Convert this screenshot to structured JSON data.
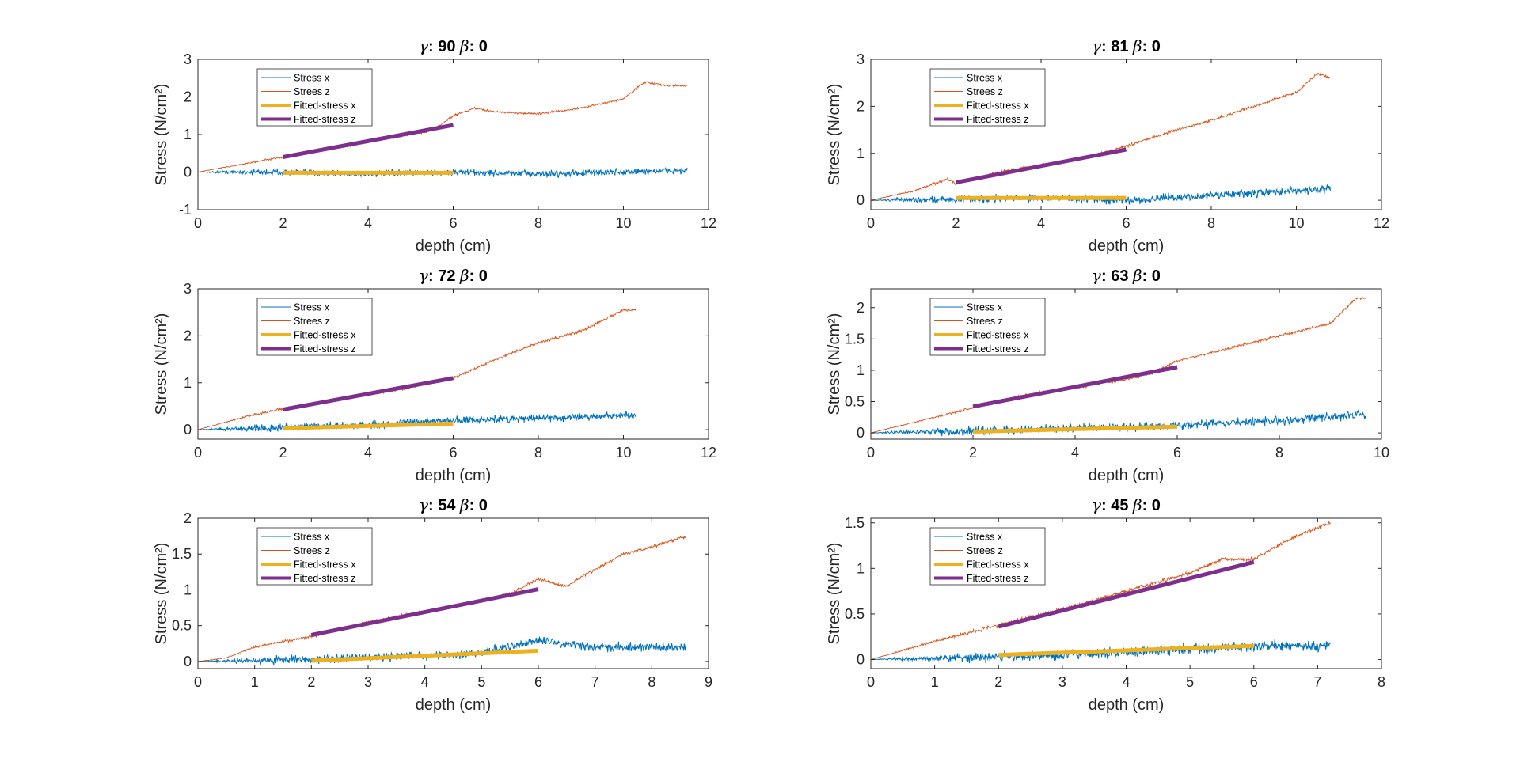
{
  "colors": {
    "stress_x": "#0072BD",
    "stress_z": "#D95319",
    "fitted_x": "#EDB120",
    "fitted_z": "#7E2F8E",
    "axes": "#262626"
  },
  "chart_data": [
    {
      "type": "line",
      "title": {
        "gamma_symbol": "γ",
        "gamma": ": 90 ",
        "beta_symbol": "β",
        "beta": ": 0"
      },
      "xlabel": "depth (cm)",
      "ylabel": "Stress (N/cm²)",
      "xlim": [
        0,
        12
      ],
      "ylim": [
        -1,
        3
      ],
      "xticks": [
        0,
        2,
        4,
        6,
        8,
        10,
        12
      ],
      "yticks": [
        -1,
        0,
        1,
        2,
        3
      ],
      "legend": {
        "position": "top-left",
        "entries": [
          "Stress x",
          "Strees z",
          "Fitted-stress x",
          "Fitted-stress z"
        ]
      },
      "series": [
        {
          "name": "Stress x",
          "kind": "noisy",
          "x": [
            0,
            2,
            4,
            6,
            8,
            10,
            11.5
          ],
          "values": [
            0,
            0.0,
            -0.05,
            0.0,
            -0.05,
            0.0,
            0.05
          ],
          "noise": 0.13
        },
        {
          "name": "Strees z",
          "kind": "noisy",
          "x": [
            0,
            1,
            2,
            3,
            4,
            5,
            5.5,
            6,
            6.5,
            7,
            8,
            9,
            10,
            10.5,
            11,
            11.5
          ],
          "values": [
            0,
            0.2,
            0.4,
            0.6,
            0.8,
            1.0,
            1.1,
            1.5,
            1.7,
            1.6,
            1.55,
            1.7,
            1.95,
            2.4,
            2.3,
            2.3
          ],
          "noise": 0.04
        },
        {
          "name": "Fitted-stress x",
          "kind": "fit",
          "x": [
            2,
            6
          ],
          "values": [
            -0.02,
            -0.02
          ]
        },
        {
          "name": "Fitted-stress z",
          "kind": "fit",
          "x": [
            2,
            6
          ],
          "values": [
            0.4,
            1.25
          ]
        }
      ]
    },
    {
      "type": "line",
      "title": {
        "gamma_symbol": "γ",
        "gamma": ": 81 ",
        "beta_symbol": "β",
        "beta": ": 0"
      },
      "xlabel": "depth (cm)",
      "ylabel": "Stress (N/cm²)",
      "xlim": [
        0,
        12
      ],
      "ylim": [
        -0.2,
        3
      ],
      "xticks": [
        0,
        2,
        4,
        6,
        8,
        10,
        12
      ],
      "yticks": [
        0,
        1,
        2,
        3
      ],
      "legend": {
        "position": "top-left",
        "entries": [
          "Stress x",
          "Strees z",
          "Fitted-stress x",
          "Fitted-stress z"
        ]
      },
      "series": [
        {
          "name": "Stress x",
          "kind": "noisy",
          "x": [
            0,
            2,
            4,
            6,
            8,
            10,
            10.8
          ],
          "values": [
            0,
            0.02,
            0.05,
            0.0,
            0.1,
            0.2,
            0.25
          ],
          "noise": 0.12
        },
        {
          "name": "Strees z",
          "kind": "noisy",
          "x": [
            0,
            1,
            1.8,
            2,
            3,
            4,
            5,
            6,
            7,
            8,
            9,
            10,
            10.5,
            10.8
          ],
          "values": [
            0,
            0.2,
            0.45,
            0.35,
            0.6,
            0.75,
            0.9,
            1.15,
            1.45,
            1.7,
            2.0,
            2.3,
            2.7,
            2.6
          ],
          "noise": 0.04
        },
        {
          "name": "Fitted-stress x",
          "kind": "fit",
          "x": [
            2,
            6
          ],
          "values": [
            0.05,
            0.05
          ]
        },
        {
          "name": "Fitted-stress z",
          "kind": "fit",
          "x": [
            2,
            6
          ],
          "values": [
            0.38,
            1.08
          ]
        }
      ]
    },
    {
      "type": "line",
      "title": {
        "gamma_symbol": "γ",
        "gamma": ": 72 ",
        "beta_symbol": "β",
        "beta": ": 0"
      },
      "xlabel": "depth (cm)",
      "ylabel": "Stress (N/cm²)",
      "xlim": [
        0,
        12
      ],
      "ylim": [
        -0.2,
        3
      ],
      "xticks": [
        0,
        2,
        4,
        6,
        8,
        10,
        12
      ],
      "yticks": [
        0,
        1,
        2,
        3
      ],
      "legend": {
        "position": "top-left",
        "entries": [
          "Stress x",
          "Strees z",
          "Fitted-stress x",
          "Fitted-stress z"
        ]
      },
      "series": [
        {
          "name": "Stress x",
          "kind": "noisy",
          "x": [
            0,
            2,
            4,
            6,
            8,
            10,
            10.3
          ],
          "values": [
            0,
            0.05,
            0.1,
            0.2,
            0.25,
            0.3,
            0.3
          ],
          "noise": 0.12
        },
        {
          "name": "Strees z",
          "kind": "noisy",
          "x": [
            0,
            1,
            2,
            3,
            4,
            5,
            6,
            6.5,
            7,
            8,
            9,
            10,
            10.3
          ],
          "values": [
            0,
            0.25,
            0.45,
            0.6,
            0.75,
            0.9,
            1.1,
            1.3,
            1.5,
            1.85,
            2.1,
            2.55,
            2.55
          ],
          "noise": 0.04
        },
        {
          "name": "Fitted-stress x",
          "kind": "fit",
          "x": [
            2,
            6
          ],
          "values": [
            0.03,
            0.13
          ]
        },
        {
          "name": "Fitted-stress z",
          "kind": "fit",
          "x": [
            2,
            6
          ],
          "values": [
            0.43,
            1.1
          ]
        }
      ]
    },
    {
      "type": "line",
      "title": {
        "gamma_symbol": "γ",
        "gamma": ": 63 ",
        "beta_symbol": "β",
        "beta": ": 0"
      },
      "xlabel": "depth (cm)",
      "ylabel": "Stress (N/cm²)",
      "xlim": [
        0,
        10
      ],
      "ylim": [
        -0.1,
        2.3
      ],
      "xticks": [
        0,
        2,
        4,
        6,
        8,
        10
      ],
      "yticks": [
        0,
        0.5,
        1,
        1.5,
        2
      ],
      "legend": {
        "position": "top-left",
        "entries": [
          "Stress x",
          "Strees z",
          "Fitted-stress x",
          "Fitted-stress z"
        ]
      },
      "series": [
        {
          "name": "Stress x",
          "kind": "noisy",
          "x": [
            0,
            2,
            4,
            6,
            8,
            9.7
          ],
          "values": [
            0,
            0.03,
            0.07,
            0.12,
            0.2,
            0.3
          ],
          "noise": 0.1
        },
        {
          "name": "Strees z",
          "kind": "noisy",
          "x": [
            0,
            1,
            2,
            3,
            4,
            5,
            5.5,
            6,
            7,
            8,
            9,
            9.5,
            9.7
          ],
          "values": [
            0,
            0.2,
            0.4,
            0.6,
            0.72,
            0.85,
            0.95,
            1.15,
            1.35,
            1.55,
            1.75,
            2.15,
            2.15
          ],
          "noise": 0.03
        },
        {
          "name": "Fitted-stress x",
          "kind": "fit",
          "x": [
            2,
            6
          ],
          "values": [
            0.02,
            0.1
          ]
        },
        {
          "name": "Fitted-stress z",
          "kind": "fit",
          "x": [
            2,
            6
          ],
          "values": [
            0.42,
            1.05
          ]
        }
      ]
    },
    {
      "type": "line",
      "title": {
        "gamma_symbol": "γ",
        "gamma": ": 54 ",
        "beta_symbol": "β",
        "beta": ": 0"
      },
      "xlabel": "depth (cm)",
      "ylabel": "Stress (N/cm²)",
      "xlim": [
        0,
        9
      ],
      "ylim": [
        -0.1,
        2
      ],
      "xticks": [
        0,
        1,
        2,
        3,
        4,
        5,
        6,
        7,
        8,
        9
      ],
      "yticks": [
        0,
        0.5,
        1,
        1.5,
        2
      ],
      "legend": {
        "position": "top-left",
        "entries": [
          "Stress x",
          "Strees z",
          "Fitted-stress x",
          "Fitted-stress z"
        ]
      },
      "series": [
        {
          "name": "Stress x",
          "kind": "noisy",
          "x": [
            0,
            2,
            4,
            5,
            6,
            7,
            8,
            8.6
          ],
          "values": [
            0,
            0.03,
            0.08,
            0.12,
            0.3,
            0.2,
            0.2,
            0.2
          ],
          "noise": 0.09
        },
        {
          "name": "Strees z",
          "kind": "noisy",
          "x": [
            0,
            0.5,
            1,
            2,
            3,
            4,
            5,
            5.5,
            6,
            6.5,
            6.8,
            7.5,
            8,
            8.6
          ],
          "values": [
            0,
            0.05,
            0.2,
            0.35,
            0.55,
            0.7,
            0.85,
            0.95,
            1.15,
            1.05,
            1.2,
            1.5,
            1.6,
            1.75
          ],
          "noise": 0.03
        },
        {
          "name": "Fitted-stress x",
          "kind": "fit",
          "x": [
            2,
            6
          ],
          "values": [
            0.01,
            0.15
          ]
        },
        {
          "name": "Fitted-stress z",
          "kind": "fit",
          "x": [
            2,
            6
          ],
          "values": [
            0.37,
            1.01
          ]
        }
      ]
    },
    {
      "type": "line",
      "title": {
        "gamma_symbol": "γ",
        "gamma": ": 45 ",
        "beta_symbol": "β",
        "beta": ": 0"
      },
      "xlabel": "depth (cm)",
      "ylabel": "Stress (N/cm²)",
      "xlim": [
        0,
        8
      ],
      "ylim": [
        -0.1,
        1.55
      ],
      "xticks": [
        0,
        1,
        2,
        3,
        4,
        5,
        6,
        7,
        8
      ],
      "yticks": [
        0,
        0.5,
        1,
        1.5
      ],
      "legend": {
        "position": "top-left",
        "entries": [
          "Stress x",
          "Strees z",
          "Fitted-stress x",
          "Fitted-stress z"
        ]
      },
      "series": [
        {
          "name": "Stress x",
          "kind": "noisy",
          "x": [
            0,
            2,
            4,
            5,
            6,
            7.2
          ],
          "values": [
            0,
            0.03,
            0.08,
            0.12,
            0.15,
            0.15
          ],
          "noise": 0.08
        },
        {
          "name": "Strees z",
          "kind": "noisy",
          "x": [
            0,
            1,
            2,
            3,
            4,
            5,
            5.5,
            6,
            6.5,
            7,
            7.2
          ],
          "values": [
            0,
            0.2,
            0.38,
            0.55,
            0.75,
            0.95,
            1.1,
            1.1,
            1.3,
            1.45,
            1.5
          ],
          "noise": 0.03
        },
        {
          "name": "Fitted-stress x",
          "kind": "fit",
          "x": [
            2,
            6
          ],
          "values": [
            0.05,
            0.15
          ]
        },
        {
          "name": "Fitted-stress z",
          "kind": "fit",
          "x": [
            2,
            6
          ],
          "values": [
            0.36,
            1.07
          ]
        }
      ]
    }
  ]
}
